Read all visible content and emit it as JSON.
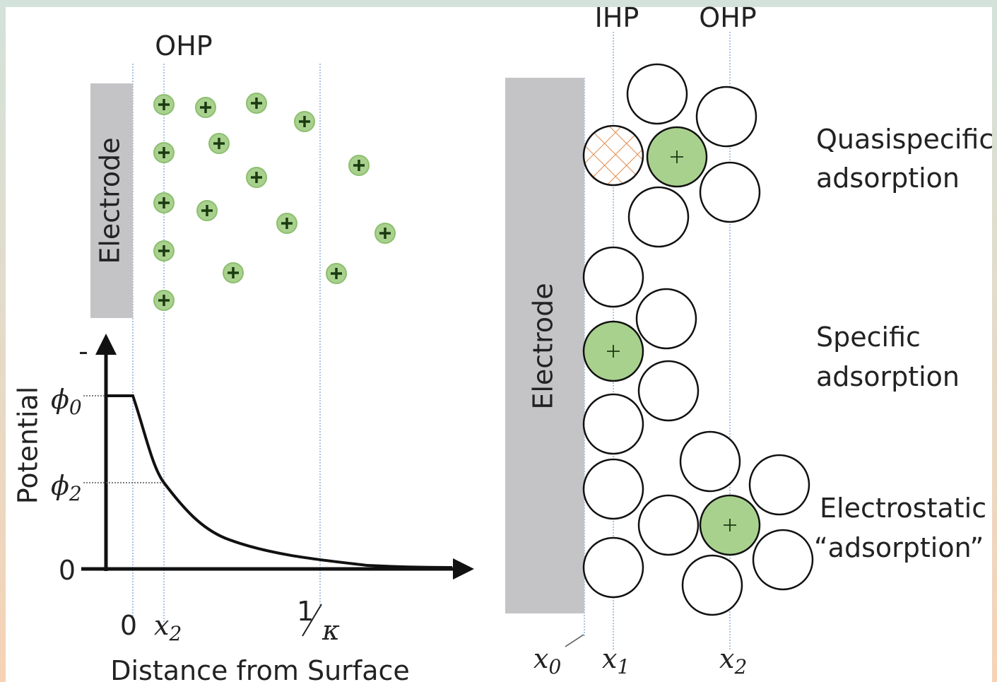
{
  "left": {
    "ohp": "OHP",
    "electrode": "Electrode",
    "minus": "-",
    "axis_label": "Potential",
    "phi0": {
      "symbol": "ϕ",
      "sub": "0"
    },
    "phi2": {
      "symbol": "ϕ",
      "sub": "2"
    },
    "zero_y": "0",
    "zero_x": "0",
    "x2": {
      "symbol": "x",
      "sub": "2"
    },
    "inv_kappa": {
      "num": "1",
      "den": "κ"
    },
    "x_label": "Distance from Surface"
  },
  "right": {
    "ihp": "IHP",
    "ohp": "OHP",
    "electrode": "Electrode",
    "labels": [
      [
        "Quasispecific",
        "adsorption"
      ],
      [
        "Specific",
        "adsorption"
      ],
      [
        "Electrostatic",
        "“adsorption”"
      ]
    ],
    "x0": {
      "symbol": "x",
      "sub": "0"
    },
    "x1": {
      "symbol": "x",
      "sub": "1"
    },
    "x2": {
      "symbol": "x",
      "sub": "2"
    }
  }
}
